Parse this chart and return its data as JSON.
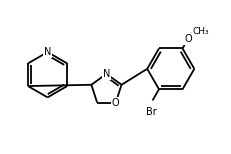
{
  "bg_color": "#ffffff",
  "bond_color": "#000000",
  "text_color": "#000000",
  "line_width": 1.3,
  "font_size": 7.0,
  "xlim": [
    0.0,
    5.0
  ],
  "ylim": [
    -0.2,
    3.2
  ]
}
